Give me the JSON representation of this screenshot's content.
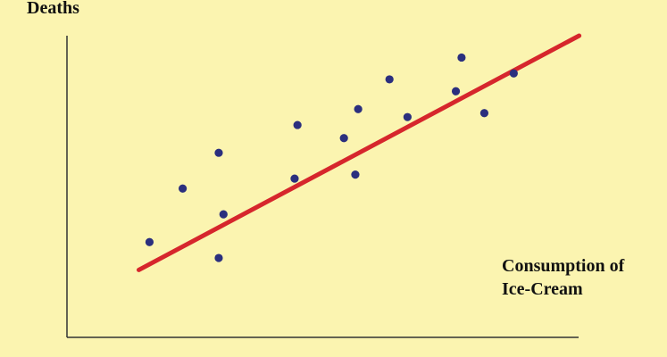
{
  "chart_data": {
    "type": "scatter",
    "ylabel": "Deaths",
    "xlabel_lines": [
      "Consumption of",
      "Ice-Cream"
    ],
    "points": [
      {
        "x": 0.47,
        "y": 2.4
      },
      {
        "x": 0.82,
        "y": 3.75
      },
      {
        "x": 1.2,
        "y": 2.0
      },
      {
        "x": 1.2,
        "y": 4.65
      },
      {
        "x": 1.25,
        "y": 3.1
      },
      {
        "x": 2.0,
        "y": 4.0
      },
      {
        "x": 2.03,
        "y": 5.35
      },
      {
        "x": 2.52,
        "y": 5.02
      },
      {
        "x": 2.64,
        "y": 4.1
      },
      {
        "x": 2.67,
        "y": 5.75
      },
      {
        "x": 3.0,
        "y": 6.5
      },
      {
        "x": 3.19,
        "y": 5.55
      },
      {
        "x": 3.7,
        "y": 6.2
      },
      {
        "x": 3.76,
        "y": 7.05
      },
      {
        "x": 4.0,
        "y": 5.65
      },
      {
        "x": 4.31,
        "y": 6.65
      }
    ],
    "trendline": {
      "x0": 0,
      "y0": 1.7,
      "x1": 5.0,
      "y1": 7.6
    },
    "xlim": [
      -0.4,
      5.7
    ],
    "ylim": [
      0,
      7.6
    ],
    "grid": false,
    "colors": {
      "background": "#fbf4b0",
      "points": "#2b2f7e",
      "trendline": "#d6262c",
      "axes": "#333333"
    }
  }
}
